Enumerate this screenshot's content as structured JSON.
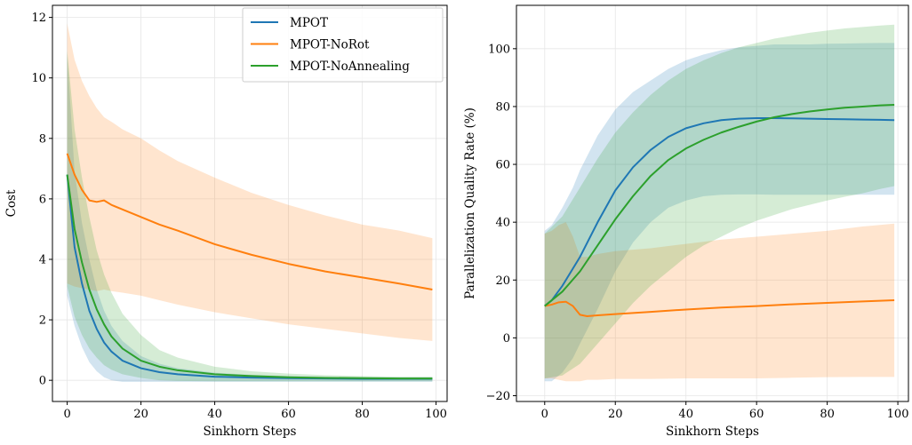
{
  "colors": {
    "MPOT": "#1f77b4",
    "MPOT-NoRot": "#ff7f0e",
    "MPOT-NoAnnealing": "#2ca02c"
  },
  "chart_data": [
    {
      "type": "line",
      "xlabel": "Sinkhorn Steps",
      "ylabel": "Cost",
      "xlim": [
        -4,
        103
      ],
      "ylim": [
        -0.7,
        12.4
      ],
      "xticks": [
        0,
        20,
        40,
        60,
        80,
        100
      ],
      "yticks": [
        0,
        2,
        4,
        6,
        8,
        10,
        12
      ],
      "grid": true,
      "legend": {
        "position": "top-right",
        "entries": [
          "MPOT",
          "MPOT-NoRot",
          "MPOT-NoAnnealing"
        ]
      },
      "series": [
        {
          "name": "MPOT",
          "color": "#1f77b4",
          "x": [
            0,
            2,
            4,
            6,
            8,
            10,
            12,
            15,
            20,
            25,
            30,
            40,
            50,
            60,
            70,
            80,
            90,
            99
          ],
          "mean": [
            6.8,
            4.4,
            3.2,
            2.3,
            1.7,
            1.25,
            0.95,
            0.65,
            0.4,
            0.27,
            0.2,
            0.12,
            0.09,
            0.07,
            0.06,
            0.05,
            0.05,
            0.05
          ],
          "upper": [
            10.8,
            6.9,
            5.2,
            4.0,
            3.0,
            2.3,
            1.8,
            1.3,
            0.8,
            0.55,
            0.4,
            0.25,
            0.18,
            0.14,
            0.12,
            0.1,
            0.1,
            0.1
          ],
          "lower": [
            2.8,
            1.8,
            1.1,
            0.6,
            0.3,
            0.1,
            0.0,
            -0.05,
            -0.05,
            -0.05,
            -0.05,
            -0.05,
            -0.05,
            -0.05,
            -0.05,
            -0.05,
            -0.05,
            -0.05
          ]
        },
        {
          "name": "MPOT-NoRot",
          "color": "#ff7f0e",
          "x": [
            0,
            2,
            4,
            6,
            8,
            10,
            12,
            15,
            20,
            25,
            30,
            40,
            50,
            60,
            70,
            80,
            90,
            99
          ],
          "mean": [
            7.5,
            6.8,
            6.3,
            5.95,
            5.9,
            5.95,
            5.8,
            5.65,
            5.4,
            5.15,
            4.95,
            4.5,
            4.15,
            3.85,
            3.6,
            3.4,
            3.2,
            3.0
          ],
          "upper": [
            11.8,
            10.6,
            9.9,
            9.4,
            9.0,
            8.7,
            8.55,
            8.3,
            8.0,
            7.6,
            7.25,
            6.7,
            6.2,
            5.8,
            5.45,
            5.15,
            4.95,
            4.7
          ],
          "lower": [
            3.2,
            3.1,
            3.05,
            3.0,
            2.95,
            3.0,
            2.95,
            2.9,
            2.8,
            2.65,
            2.5,
            2.25,
            2.05,
            1.85,
            1.7,
            1.55,
            1.4,
            1.3
          ]
        },
        {
          "name": "MPOT-NoAnnealing",
          "color": "#2ca02c",
          "x": [
            0,
            2,
            4,
            6,
            8,
            10,
            12,
            15,
            20,
            25,
            30,
            40,
            50,
            60,
            70,
            80,
            90,
            99
          ],
          "mean": [
            6.8,
            5.0,
            3.9,
            3.0,
            2.35,
            1.85,
            1.45,
            1.05,
            0.65,
            0.45,
            0.33,
            0.2,
            0.14,
            0.1,
            0.08,
            0.07,
            0.06,
            0.06
          ],
          "upper": [
            10.9,
            8.3,
            6.7,
            5.4,
            4.3,
            3.5,
            2.9,
            2.2,
            1.5,
            1.0,
            0.75,
            0.45,
            0.3,
            0.22,
            0.17,
            0.14,
            0.12,
            0.12
          ],
          "lower": [
            3.1,
            2.1,
            1.5,
            1.05,
            0.75,
            0.5,
            0.35,
            0.2,
            0.08,
            0.0,
            -0.02,
            -0.03,
            -0.03,
            -0.03,
            -0.03,
            -0.03,
            -0.03,
            -0.03
          ]
        }
      ]
    },
    {
      "type": "line",
      "xlabel": "Sinkhorn Steps",
      "ylabel": "Parallelization Quality Rate (%)",
      "xlim": [
        -8,
        103
      ],
      "ylim": [
        -22,
        115
      ],
      "xticks": [
        0,
        20,
        40,
        60,
        80,
        100
      ],
      "yticks": [
        -20,
        0,
        20,
        40,
        60,
        80,
        100
      ],
      "grid": true,
      "series": [
        {
          "name": "MPOT",
          "color": "#1f77b4",
          "x": [
            0,
            2,
            5,
            8,
            10,
            15,
            20,
            25,
            30,
            35,
            40,
            45,
            50,
            55,
            60,
            65,
            70,
            75,
            80,
            85,
            90,
            95,
            99
          ],
          "mean": [
            11,
            13,
            18,
            24,
            28,
            40,
            51,
            59,
            65,
            69.5,
            72.5,
            74.2,
            75.3,
            75.8,
            76.0,
            76.0,
            75.9,
            75.8,
            75.7,
            75.6,
            75.5,
            75.4,
            75.3
          ],
          "upper": [
            37,
            39,
            45,
            52,
            58,
            70,
            79,
            85,
            89,
            93,
            96,
            98,
            99.5,
            100.5,
            101,
            101.5,
            101.5,
            101.5,
            101.7,
            101.8,
            101.9,
            102,
            102
          ],
          "lower": [
            -15,
            -15,
            -12,
            -7,
            -2,
            10,
            23,
            33,
            40,
            45,
            47.5,
            49,
            49.5,
            49.6,
            49.6,
            49.5,
            49.5,
            49.5,
            49.5,
            49.5,
            49.5,
            49.5,
            49.5
          ]
        },
        {
          "name": "MPOT-NoRot",
          "color": "#ff7f0e",
          "x": [
            0,
            2,
            4,
            6,
            8,
            10,
            12,
            15,
            20,
            30,
            40,
            50,
            60,
            70,
            80,
            90,
            99
          ],
          "mean": [
            11,
            11.5,
            12.3,
            12.5,
            11,
            8,
            7.5,
            7.8,
            8.2,
            9,
            9.8,
            10.5,
            11,
            11.6,
            12.1,
            12.6,
            13.0
          ],
          "upper": [
            36,
            37,
            39,
            40,
            35,
            28,
            28,
            29,
            30,
            31,
            32.5,
            34,
            35,
            36,
            37,
            38.5,
            39.5
          ],
          "lower": [
            -14,
            -14,
            -14.5,
            -15,
            -15,
            -15,
            -14.5,
            -14.5,
            -14.2,
            -14.2,
            -14,
            -14,
            -14,
            -13.8,
            -13.6,
            -13.5,
            -13.5
          ]
        },
        {
          "name": "MPOT-NoAnnealing",
          "color": "#2ca02c",
          "x": [
            0,
            5,
            10,
            15,
            20,
            25,
            30,
            35,
            40,
            45,
            50,
            55,
            60,
            65,
            70,
            75,
            80,
            85,
            90,
            95,
            99
          ],
          "mean": [
            11,
            16,
            23,
            32,
            41,
            49,
            56,
            61.5,
            65.5,
            68.5,
            71,
            73,
            74.8,
            76.3,
            77.4,
            78.3,
            79.0,
            79.6,
            80.0,
            80.4,
            80.6
          ],
          "upper": [
            36,
            42,
            52,
            62,
            71,
            78,
            84,
            89,
            93,
            96,
            98.5,
            100.5,
            102,
            103.5,
            104.5,
            105.5,
            106.3,
            107,
            107.5,
            108,
            108.3
          ],
          "lower": [
            -14,
            -13,
            -9,
            -2,
            5,
            12,
            18,
            23,
            28,
            32,
            35,
            38,
            40.5,
            42.5,
            44.5,
            46,
            47.5,
            48.8,
            50,
            51.5,
            52.5
          ]
        }
      ]
    }
  ]
}
